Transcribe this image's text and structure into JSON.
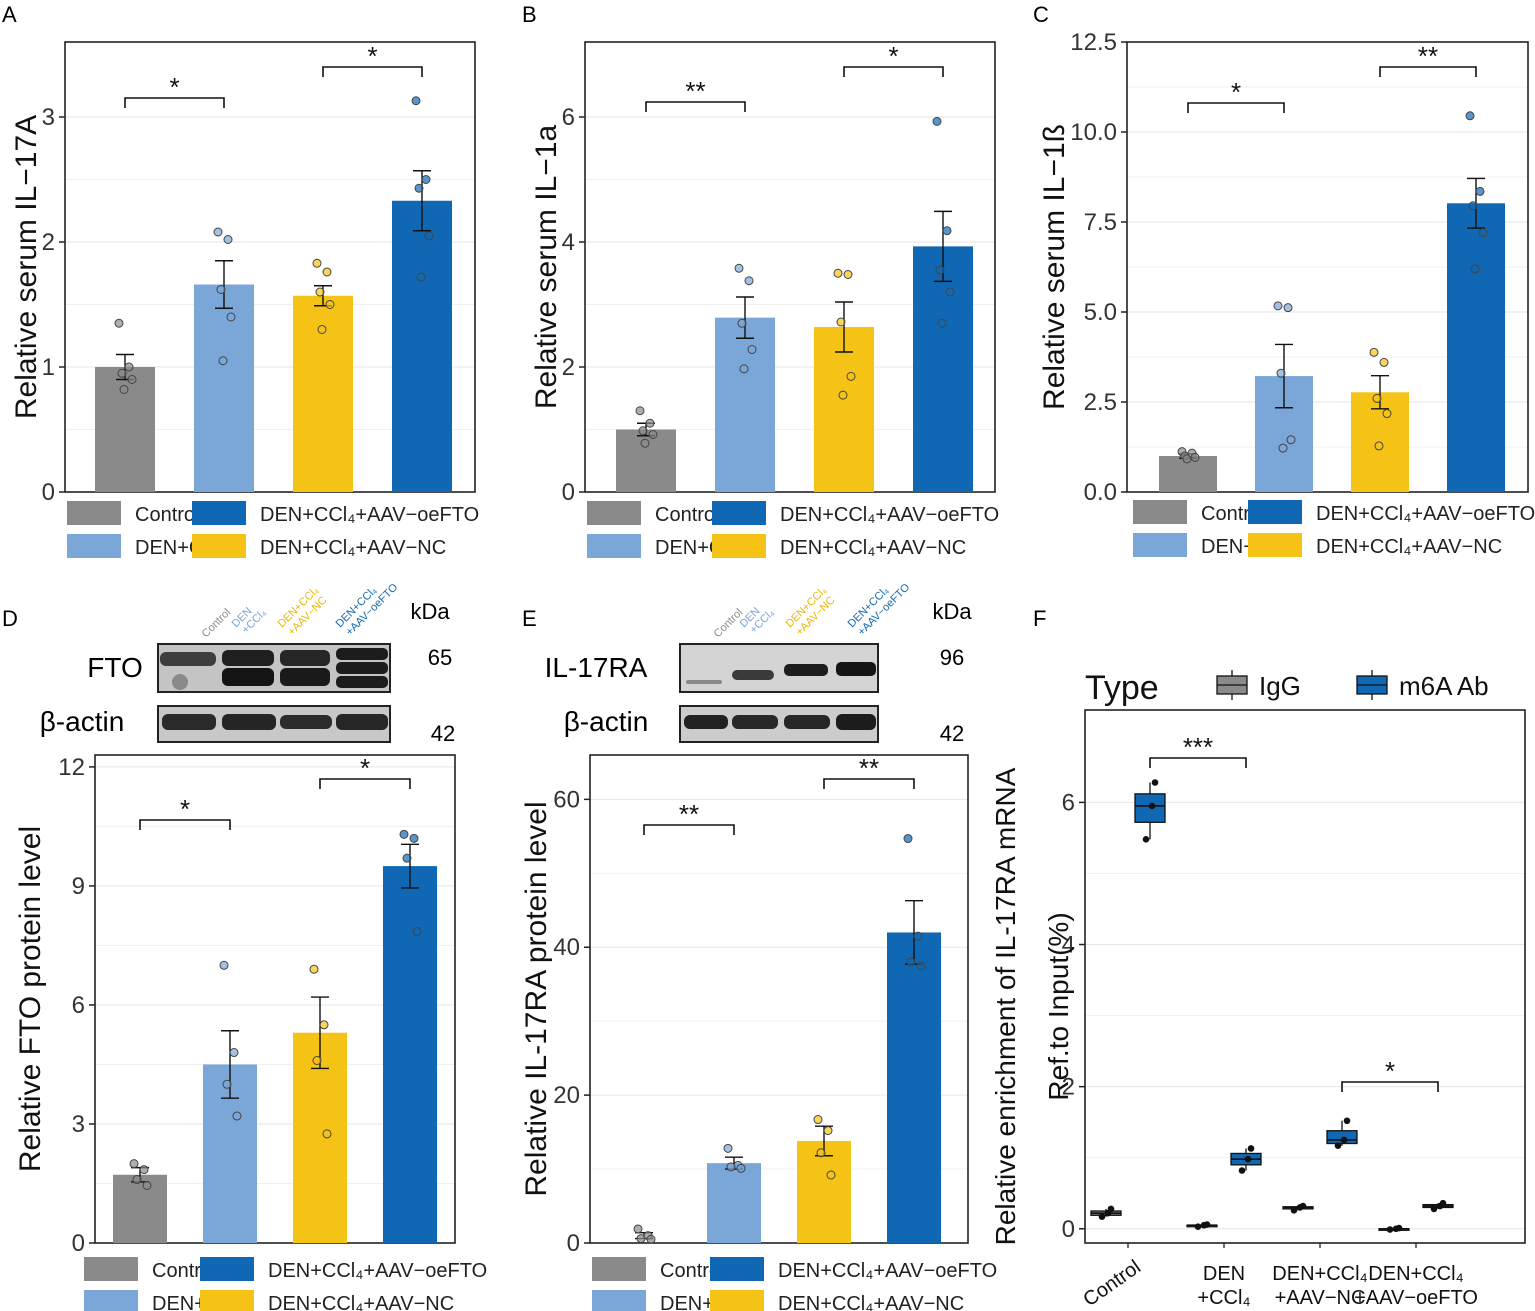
{
  "colors": {
    "control": "#8a8a8a",
    "den_ccl4": "#7aa6d8",
    "aav_nc": "#f5c315",
    "aav_oefto": "#1068b4",
    "grid": "#e6e6e6",
    "axis": "#222222"
  },
  "legend_labels": {
    "control": "Control",
    "den_ccl4": "DEN+CCl₄",
    "aav_nc": "DEN+CCl₄+AAV−NC",
    "aav_oefto": "DEN+CCl₄+AAV−oeFTO"
  },
  "blots": {
    "kda_label": "kDa",
    "lane_labels": {
      "control": "Control",
      "den_line1": "DEN",
      "den_line2": "+CCl₄",
      "nc_line1": "DEN+CCl₄",
      "nc_line2": "+AAV−NC",
      "oe_line1": "DEN+CCl₄",
      "oe_line2": "+AAV−oeFTO"
    },
    "D": {
      "target": "FTO",
      "target_kda": "65",
      "loading": "β-actin",
      "loading_kda": "42"
    },
    "E": {
      "target": "IL-17RA",
      "target_kda": "96",
      "loading": "β-actin",
      "loading_kda": "42"
    }
  },
  "chart_data": [
    {
      "panel": "A",
      "type": "bar",
      "ylabel": "Relative serum IL−17A",
      "ylim": [
        0,
        3.6
      ],
      "yticks": [
        "0",
        "1",
        "2",
        "3"
      ],
      "categories": [
        "Control",
        "DEN+CCl4",
        "DEN+CCl4+AAV-NC",
        "DEN+CCl4+AAV-oeFTO"
      ],
      "values": [
        1.0,
        1.66,
        1.57,
        2.33
      ],
      "errors": [
        0.1,
        0.19,
        0.08,
        0.24
      ],
      "points": [
        [
          1.35,
          1.0,
          0.95,
          0.9,
          0.82
        ],
        [
          2.08,
          2.02,
          1.62,
          1.4,
          1.05
        ],
        [
          1.83,
          1.76,
          1.6,
          1.5,
          1.3
        ],
        [
          3.13,
          2.5,
          2.43,
          2.05,
          1.72
        ]
      ],
      "significance": [
        {
          "from": 0,
          "to": 1,
          "label": "*"
        },
        {
          "from": 2,
          "to": 3,
          "label": "*"
        }
      ]
    },
    {
      "panel": "B",
      "type": "bar",
      "ylabel": "Relative serum IL−1a",
      "ylim": [
        0,
        7.2
      ],
      "yticks": [
        "0",
        "2",
        "4",
        "6"
      ],
      "categories": [
        "Control",
        "DEN+CCl4",
        "DEN+CCl4+AAV-NC",
        "DEN+CCl4+AAV-oeFTO"
      ],
      "values": [
        1.0,
        2.79,
        2.64,
        3.93
      ],
      "errors": [
        0.1,
        0.33,
        0.4,
        0.56
      ],
      "points": [
        [
          1.3,
          1.1,
          0.98,
          0.92,
          0.78
        ],
        [
          3.58,
          3.38,
          2.7,
          2.28,
          1.97
        ],
        [
          3.5,
          3.48,
          2.72,
          1.85,
          1.55
        ],
        [
          5.93,
          4.18,
          3.55,
          3.2,
          2.7
        ]
      ],
      "significance": [
        {
          "from": 0,
          "to": 1,
          "label": "**"
        },
        {
          "from": 2,
          "to": 3,
          "label": "*"
        }
      ]
    },
    {
      "panel": "C",
      "type": "bar",
      "ylabel": "Relative serum IL−1ß",
      "ylim": [
        0,
        12.5
      ],
      "yticks": [
        "0.0",
        "2.5",
        "5.0",
        "7.5",
        "10.0",
        "12.5"
      ],
      "categories": [
        "Control",
        "DEN+CCl4",
        "DEN+CCl4+AAV-NC",
        "DEN+CCl4+AAV-oeFTO"
      ],
      "values": [
        1.0,
        3.22,
        2.77,
        8.02
      ],
      "errors": [
        0.06,
        0.88,
        0.46,
        0.69
      ],
      "points": [
        [
          1.12,
          1.08,
          1.0,
          0.96,
          0.92
        ],
        [
          5.17,
          5.12,
          3.3,
          1.45,
          1.22
        ],
        [
          3.88,
          3.6,
          2.6,
          2.18,
          1.28
        ],
        [
          10.45,
          8.35,
          7.95,
          7.2,
          6.2
        ]
      ],
      "significance": [
        {
          "from": 0,
          "to": 1,
          "label": "*"
        },
        {
          "from": 2,
          "to": 3,
          "label": "**"
        }
      ]
    },
    {
      "panel": "D",
      "type": "bar",
      "ylabel": "Relative FTO protein level",
      "ylim": [
        0,
        12.3
      ],
      "yticks": [
        "0",
        "3",
        "6",
        "9",
        "12"
      ],
      "categories": [
        "Control",
        "DEN+CCl4",
        "DEN+CCl4+AAV-NC",
        "DEN+CCl4+AAV-oeFTO"
      ],
      "values": [
        1.72,
        4.5,
        5.3,
        9.5
      ],
      "errors": [
        0.18,
        0.85,
        0.9,
        0.55
      ],
      "points": [
        [
          2.0,
          1.85,
          1.6,
          1.45
        ],
        [
          7.0,
          4.8,
          4.0,
          3.2
        ],
        [
          6.9,
          5.5,
          4.6,
          2.75
        ],
        [
          10.3,
          10.2,
          9.7,
          7.85
        ]
      ],
      "significance": [
        {
          "from": 0,
          "to": 1,
          "label": "*"
        },
        {
          "from": 2,
          "to": 3,
          "label": "*"
        }
      ]
    },
    {
      "panel": "E",
      "type": "bar",
      "ylabel": "Relative IL-17RA protein level",
      "ylim": [
        0,
        66
      ],
      "yticks": [
        "0",
        "20",
        "40",
        "60"
      ],
      "categories": [
        "Control",
        "DEN+CCl4",
        "DEN+CCl4+AAV-NC",
        "DEN+CCl4+AAV-oeFTO"
      ],
      "values": [
        1.0,
        10.8,
        13.8,
        42.0
      ],
      "errors": [
        0.4,
        0.8,
        2.0,
        4.3
      ],
      "points": [
        [
          1.9,
          1.0,
          0.6,
          0.5
        ],
        [
          12.8,
          10.5,
          10.3,
          10.1
        ],
        [
          16.7,
          15.2,
          12.2,
          9.2
        ],
        [
          54.7,
          41.5,
          38.0,
          37.5
        ]
      ],
      "significance": [
        {
          "from": 0,
          "to": 1,
          "label": "**"
        },
        {
          "from": 2,
          "to": 3,
          "label": "**"
        }
      ]
    },
    {
      "panel": "F",
      "type": "box",
      "ylabel_line1": "Relative enrichment of IL-17RA mRNA",
      "ylabel_line2": "Ref.to Input(%)",
      "ylim": [
        -0.2,
        7.3
      ],
      "yticks": [
        "0",
        "2",
        "4",
        "6"
      ],
      "categories": [
        "Control",
        "DEN\n+CCl₄",
        "DEN+CCl₄\n+AAV−NC",
        "DEN+CCl₄\n+AAV−oeFTO"
      ],
      "legend_title": "Type",
      "legend_entries": [
        "IgG",
        "m6A Ab"
      ],
      "series": [
        {
          "name": "IgG",
          "boxes": [
            [
              0.17,
              0.19,
              0.22,
              0.25,
              0.28
            ],
            [
              0.03,
              0.04,
              0.05,
              0.05,
              0.06
            ],
            [
              0.26,
              0.28,
              0.3,
              0.31,
              0.32
            ],
            [
              -0.01,
              0.0,
              0.0,
              0.0,
              0.01
            ]
          ],
          "points": [
            [
              0.17,
              0.22,
              0.28
            ],
            [
              0.03,
              0.05,
              0.06
            ],
            [
              0.26,
              0.3,
              0.32
            ],
            [
              -0.01,
              0.0,
              0.01
            ]
          ]
        },
        {
          "name": "m6A Ab",
          "boxes": [
            [
              5.48,
              5.72,
              5.95,
              6.12,
              6.28
            ],
            [
              0.82,
              0.9,
              0.98,
              1.06,
              1.13
            ],
            [
              1.17,
              1.2,
              1.25,
              1.38,
              1.52
            ],
            [
              0.28,
              0.3,
              0.32,
              0.34,
              0.36
            ]
          ],
          "points": [
            [
              5.48,
              5.95,
              6.28
            ],
            [
              0.82,
              0.98,
              1.13
            ],
            [
              1.17,
              1.25,
              1.52
            ],
            [
              0.28,
              0.32,
              0.36
            ]
          ]
        }
      ],
      "significance": [
        {
          "from": 0,
          "to": 1,
          "label": "***"
        },
        {
          "from": 2,
          "to": 3,
          "label": "*"
        }
      ]
    }
  ]
}
